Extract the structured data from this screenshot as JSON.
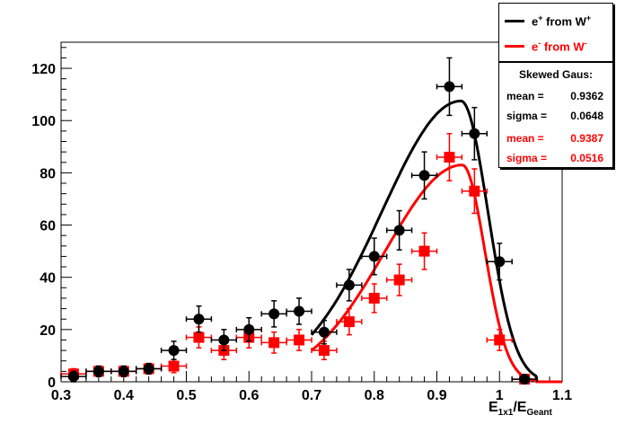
{
  "chart_data": {
    "type": "scatter",
    "xlim": [
      0.3,
      1.1
    ],
    "ylim": [
      0,
      130
    ],
    "x_ticks": [
      "0.3",
      "0.4",
      "0.5",
      "0.6",
      "0.7",
      "0.8",
      "0.9",
      "1",
      "1.1"
    ],
    "y_ticks": [
      "0",
      "20",
      "40",
      "60",
      "80",
      "100",
      "120"
    ],
    "xlabel": {
      "main": "E",
      "sub1": "1x1",
      "slash": "/E",
      "sub2": "Geant"
    },
    "grid": false,
    "legend_position": "top-right",
    "series": [
      {
        "name": "e+ from W+",
        "color": "#000000",
        "marker": "circle",
        "points": [
          {
            "x": 0.32,
            "y": 2,
            "err": 2
          },
          {
            "x": 0.36,
            "y": 4,
            "err": 2
          },
          {
            "x": 0.4,
            "y": 4,
            "err": 2
          },
          {
            "x": 0.44,
            "y": 5,
            "err": 2
          },
          {
            "x": 0.48,
            "y": 12,
            "err": 3.5
          },
          {
            "x": 0.52,
            "y": 24,
            "err": 5
          },
          {
            "x": 0.56,
            "y": 16,
            "err": 4
          },
          {
            "x": 0.6,
            "y": 20,
            "err": 4.5
          },
          {
            "x": 0.64,
            "y": 26,
            "err": 5
          },
          {
            "x": 0.68,
            "y": 27,
            "err": 5
          },
          {
            "x": 0.72,
            "y": 19,
            "err": 4.5
          },
          {
            "x": 0.76,
            "y": 37,
            "err": 6
          },
          {
            "x": 0.8,
            "y": 48,
            "err": 7
          },
          {
            "x": 0.84,
            "y": 58,
            "err": 7.5
          },
          {
            "x": 0.88,
            "y": 79,
            "err": 9
          },
          {
            "x": 0.92,
            "y": 113,
            "err": 11
          },
          {
            "x": 0.96,
            "y": 95,
            "err": 10
          },
          {
            "x": 1.0,
            "y": 46,
            "err": 7
          },
          {
            "x": 1.04,
            "y": 1,
            "err": 1
          }
        ],
        "fit": {
          "name": "Skewed Gaus",
          "mean": "0.9362",
          "sigma": "0.0648",
          "peak": 107.5,
          "start_x": 0.7,
          "start_y": 18,
          "xmax": 0.9385,
          "rightSigma": 0.043
        }
      },
      {
        "name": "e- from W-",
        "color": "#ff0000",
        "marker": "square",
        "points": [
          {
            "x": 0.32,
            "y": 3,
            "err": 2
          },
          {
            "x": 0.36,
            "y": 4,
            "err": 2
          },
          {
            "x": 0.4,
            "y": 4,
            "err": 2
          },
          {
            "x": 0.44,
            "y": 5,
            "err": 2
          },
          {
            "x": 0.48,
            "y": 6,
            "err": 2.5
          },
          {
            "x": 0.52,
            "y": 17,
            "err": 4
          },
          {
            "x": 0.56,
            "y": 12,
            "err": 3.5
          },
          {
            "x": 0.6,
            "y": 17,
            "err": 4
          },
          {
            "x": 0.64,
            "y": 15,
            "err": 4
          },
          {
            "x": 0.68,
            "y": 16,
            "err": 4
          },
          {
            "x": 0.72,
            "y": 12,
            "err": 3.5
          },
          {
            "x": 0.76,
            "y": 23,
            "err": 5
          },
          {
            "x": 0.8,
            "y": 32,
            "err": 5.5
          },
          {
            "x": 0.84,
            "y": 39,
            "err": 6
          },
          {
            "x": 0.88,
            "y": 50,
            "err": 7
          },
          {
            "x": 0.92,
            "y": 86,
            "err": 9
          },
          {
            "x": 0.96,
            "y": 73,
            "err": 8.5
          },
          {
            "x": 1.0,
            "y": 16,
            "err": 4
          },
          {
            "x": 1.04,
            "y": 1,
            "err": 1
          }
        ],
        "fit": {
          "name": "Skewed Gaus",
          "mean": "0.9387",
          "sigma": "0.0516",
          "peak": 83,
          "start_x": 0.7,
          "start_y": 12,
          "xmax": 0.9405,
          "rightSigma": 0.036
        }
      }
    ]
  },
  "legend": {
    "entries": [
      {
        "text_a": "e",
        "sup_a": "+",
        "text_b": " from W",
        "sup_b": "+",
        "color": "#000000"
      },
      {
        "text_a": "e",
        "sup_a": "-",
        "text_b": " from W",
        "sup_b": "-",
        "color": "#ff0000"
      }
    ]
  },
  "stats": {
    "title": "Skewed Gaus:",
    "rows": [
      {
        "key": "mean =",
        "value": "0.9362",
        "color": "#000000"
      },
      {
        "key": "sigma =",
        "value": "0.0648",
        "color": "#000000"
      },
      {
        "key": "mean =",
        "value": "0.9387",
        "color": "#ff0000"
      },
      {
        "key": "sigma =",
        "value": "0.0516",
        "color": "#ff0000"
      }
    ]
  }
}
